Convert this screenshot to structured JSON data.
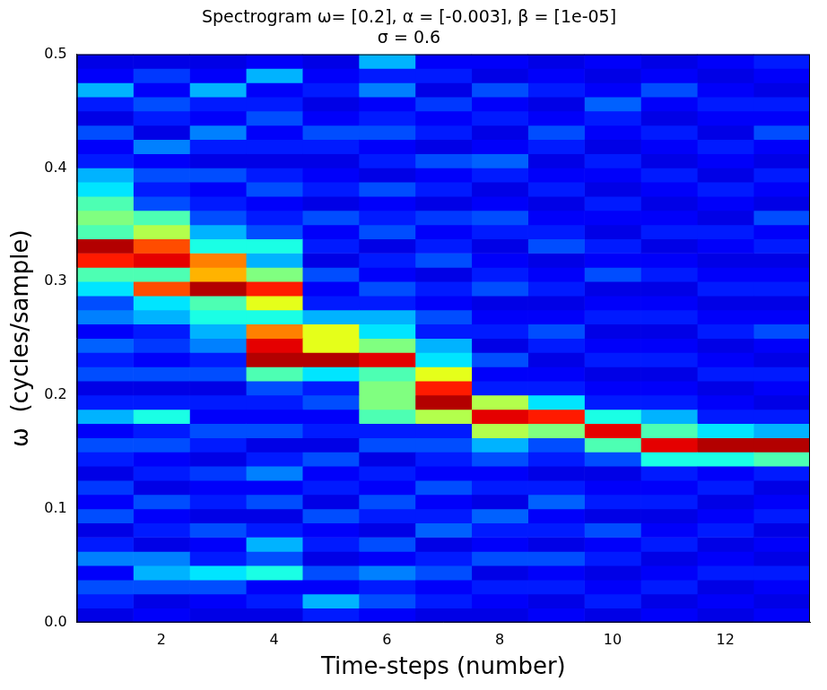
{
  "chart_data": {
    "type": "heatmap",
    "title": [
      "Spectrogram ω= [0.2], α = [-0.003], β = [1e-05]",
      "σ = 0.6"
    ],
    "x_label": "Time-steps (number)",
    "y_label": "ω  (cycles/sample)",
    "x": [
      1,
      2,
      3,
      4,
      5,
      6,
      7,
      8,
      9,
      10,
      11,
      12,
      13
    ],
    "y_bins": [
      0,
      0.0125,
      0.025,
      0.0375,
      0.05,
      0.0625,
      0.075,
      0.0875,
      0.1,
      0.1125,
      0.125,
      0.1375,
      0.15,
      0.1625,
      0.175,
      0.1875,
      0.2,
      0.2125,
      0.225,
      0.2375,
      0.25,
      0.2625,
      0.275,
      0.2875,
      0.3,
      0.3125,
      0.325,
      0.3375,
      0.35,
      0.3625,
      0.375,
      0.3875,
      0.4,
      0.4125,
      0.425,
      0.4375,
      0.45,
      0.4625,
      0.475,
      0.4875,
      0.5
    ],
    "cell_range": [
      0,
      1
    ],
    "cells": [
      [
        0.1,
        0.15,
        0.2,
        0.12,
        0.25,
        0.15,
        0.1,
        0.2,
        0.12,
        0.18,
        0.1,
        0.15,
        0.2,
        0.12,
        0.3,
        0.15,
        0.1,
        0.2,
        0.15,
        0.22,
        0.12,
        0.25,
        0.2,
        0.35,
        0.45,
        0.85,
        0.95,
        0.45,
        0.5,
        0.45,
        0.35,
        0.3,
        0.15,
        0.12,
        0.2,
        0.1,
        0.15,
        0.3,
        0.12,
        0.1
      ],
      [
        0.12,
        0.1,
        0.2,
        0.3,
        0.25,
        0.1,
        0.15,
        0.12,
        0.2,
        0.1,
        0.15,
        0.12,
        0.2,
        0.15,
        0.4,
        0.15,
        0.1,
        0.2,
        0.12,
        0.18,
        0.15,
        0.3,
        0.35,
        0.8,
        0.45,
        0.9,
        0.8,
        0.55,
        0.45,
        0.2,
        0.15,
        0.2,
        0.12,
        0.25,
        0.1,
        0.15,
        0.2,
        0.12,
        0.18,
        0.1
      ],
      [
        0.1,
        0.12,
        0.2,
        0.35,
        0.15,
        0.12,
        0.2,
        0.1,
        0.15,
        0.12,
        0.18,
        0.1,
        0.15,
        0.2,
        0.12,
        0.15,
        0.1,
        0.2,
        0.15,
        0.25,
        0.3,
        0.4,
        0.45,
        0.95,
        0.7,
        0.75,
        0.4,
        0.3,
        0.2,
        0.15,
        0.12,
        0.2,
        0.1,
        0.15,
        0.25,
        0.12,
        0.15,
        0.3,
        0.12,
        0.1
      ],
      [
        0.1,
        0.15,
        0.12,
        0.4,
        0.2,
        0.3,
        0.15,
        0.1,
        0.2,
        0.12,
        0.25,
        0.15,
        0.1,
        0.2,
        0.12,
        0.15,
        0.2,
        0.45,
        0.95,
        0.9,
        0.75,
        0.4,
        0.6,
        0.85,
        0.5,
        0.3,
        0.4,
        0.2,
        0.15,
        0.12,
        0.2,
        0.15,
        0.1,
        0.15,
        0.12,
        0.2,
        0.15,
        0.12,
        0.3,
        0.12
      ],
      [
        0.15,
        0.3,
        0.12,
        0.2,
        0.1,
        0.15,
        0.12,
        0.2,
        0.1,
        0.15,
        0.12,
        0.2,
        0.1,
        0.15,
        0.12,
        0.2,
        0.15,
        0.35,
        0.95,
        0.6,
        0.6,
        0.3,
        0.15,
        0.12,
        0.2,
        0.1,
        0.15,
        0.12,
        0.2,
        0.1,
        0.15,
        0.12,
        0.1,
        0.15,
        0.2,
        0.12,
        0.1,
        0.15,
        0.12,
        0.1
      ],
      [
        0.12,
        0.2,
        0.15,
        0.25,
        0.12,
        0.2,
        0.1,
        0.15,
        0.2,
        0.12,
        0.15,
        0.1,
        0.2,
        0.15,
        0.45,
        0.5,
        0.5,
        0.45,
        0.9,
        0.5,
        0.35,
        0.3,
        0.15,
        0.2,
        0.12,
        0.15,
        0.1,
        0.2,
        0.15,
        0.12,
        0.2,
        0.1,
        0.15,
        0.12,
        0.2,
        0.15,
        0.12,
        0.25,
        0.15,
        0.3
      ],
      [
        0.1,
        0.15,
        0.12,
        0.2,
        0.15,
        0.1,
        0.22,
        0.15,
        0.12,
        0.2,
        0.12,
        0.15,
        0.2,
        0.15,
        0.55,
        0.95,
        0.85,
        0.6,
        0.35,
        0.3,
        0.15,
        0.2,
        0.12,
        0.15,
        0.1,
        0.2,
        0.15,
        0.12,
        0.18,
        0.1,
        0.15,
        0.12,
        0.2,
        0.1,
        0.15,
        0.12,
        0.18,
        0.1,
        0.15,
        0.12
      ],
      [
        0.1,
        0.12,
        0.15,
        0.1,
        0.2,
        0.12,
        0.15,
        0.22,
        0.1,
        0.15,
        0.12,
        0.2,
        0.3,
        0.55,
        0.9,
        0.55,
        0.15,
        0.12,
        0.2,
        0.1,
        0.15,
        0.12,
        0.1,
        0.2,
        0.15,
        0.12,
        0.1,
        0.15,
        0.2,
        0.12,
        0.1,
        0.15,
        0.22,
        0.12,
        0.1,
        0.15,
        0.12,
        0.2,
        0.1,
        0.12
      ],
      [
        0.12,
        0.1,
        0.15,
        0.12,
        0.2,
        0.1,
        0.15,
        0.12,
        0.22,
        0.15,
        0.1,
        0.15,
        0.2,
        0.5,
        0.85,
        0.35,
        0.15,
        0.12,
        0.1,
        0.15,
        0.2,
        0.12,
        0.1,
        0.15,
        0.12,
        0.1,
        0.2,
        0.15,
        0.12,
        0.1,
        0.15,
        0.12,
        0.1,
        0.15,
        0.2,
        0.12,
        0.1,
        0.15,
        0.12,
        0.1
      ],
      [
        0.1,
        0.15,
        0.12,
        0.1,
        0.15,
        0.12,
        0.2,
        0.1,
        0.15,
        0.12,
        0.1,
        0.2,
        0.45,
        0.9,
        0.4,
        0.15,
        0.12,
        0.1,
        0.15,
        0.12,
        0.1,
        0.15,
        0.12,
        0.1,
        0.2,
        0.12,
        0.15,
        0.1,
        0.12,
        0.15,
        0.1,
        0.12,
        0.15,
        0.1,
        0.12,
        0.15,
        0.22,
        0.12,
        0.1,
        0.12
      ],
      [
        0.12,
        0.1,
        0.15,
        0.12,
        0.1,
        0.15,
        0.12,
        0.1,
        0.15,
        0.12,
        0.15,
        0.4,
        0.9,
        0.45,
        0.3,
        0.15,
        0.12,
        0.1,
        0.15,
        0.12,
        0.1,
        0.15,
        0.12,
        0.1,
        0.15,
        0.12,
        0.1,
        0.15,
        0.12,
        0.1,
        0.12,
        0.15,
        0.1,
        0.12,
        0.15,
        0.1,
        0.12,
        0.2,
        0.12,
        0.1
      ],
      [
        0.1,
        0.12,
        0.1,
        0.15,
        0.12,
        0.1,
        0.15,
        0.12,
        0.1,
        0.15,
        0.12,
        0.4,
        0.95,
        0.35,
        0.15,
        0.12,
        0.1,
        0.15,
        0.12,
        0.1,
        0.15,
        0.12,
        0.1,
        0.15,
        0.12,
        0.1,
        0.12,
        0.15,
        0.1,
        0.12,
        0.15,
        0.1,
        0.12,
        0.15,
        0.1,
        0.12,
        0.15,
        0.12,
        0.1,
        0.12
      ],
      [
        0.12,
        0.1,
        0.12,
        0.15,
        0.1,
        0.12,
        0.1,
        0.15,
        0.12,
        0.1,
        0.15,
        0.45,
        0.95,
        0.3,
        0.15,
        0.1,
        0.12,
        0.15,
        0.1,
        0.12,
        0.2,
        0.12,
        0.1,
        0.15,
        0.12,
        0.1,
        0.15,
        0.12,
        0.2,
        0.1,
        0.12,
        0.15,
        0.1,
        0.12,
        0.2,
        0.12,
        0.15,
        0.1,
        0.12,
        0.15
      ]
    ],
    "xlim": [
      0.5,
      13.5
    ],
    "xticks": [
      2,
      4,
      6,
      8,
      10,
      12
    ],
    "ylim": [
      0,
      0.5
    ],
    "yticks": [
      {
        "value": 0,
        "label": "0.0"
      },
      0.1,
      0.2,
      0.3,
      0.4,
      0.5
    ],
    "grid": false
  }
}
